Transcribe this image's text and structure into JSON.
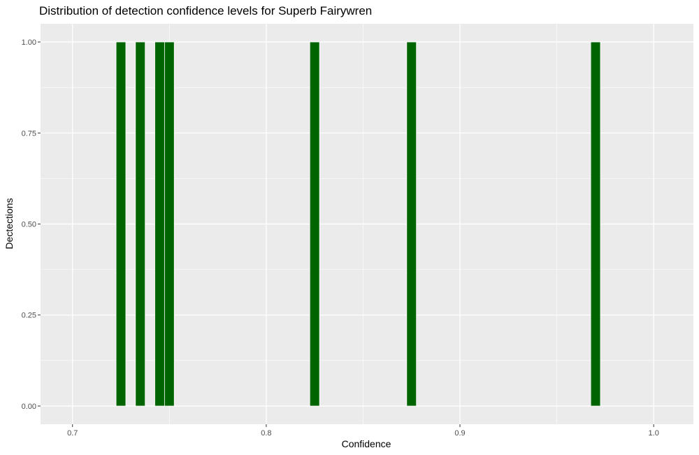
{
  "chart_data": {
    "type": "bar",
    "title": "Distribution of detection confidence levels for Superb Fairywren",
    "xlabel": "Confidence",
    "ylabel": "Dectections",
    "xlim": [
      0.6835,
      1.0205
    ],
    "ylim": [
      -0.05,
      1.05
    ],
    "x_ticks": [
      0.7,
      0.8,
      0.9,
      1.0
    ],
    "x_tick_labels": [
      "0.7",
      "0.8",
      "0.9",
      "1.0"
    ],
    "y_ticks": [
      0.0,
      0.25,
      0.5,
      0.75,
      1.0
    ],
    "y_tick_labels": [
      "0.00",
      "0.25",
      "0.50",
      "0.75",
      "1.00"
    ],
    "bin_width": 0.005,
    "x": [
      0.725,
      0.735,
      0.745,
      0.75,
      0.825,
      0.875,
      0.97
    ],
    "values": [
      1,
      1,
      1,
      1,
      1,
      1,
      1
    ],
    "grid": true,
    "panel_color": "#ebebeb",
    "grid_color": "#ffffff",
    "bar_color": "#006400",
    "bar_outline": "#ffffff"
  }
}
